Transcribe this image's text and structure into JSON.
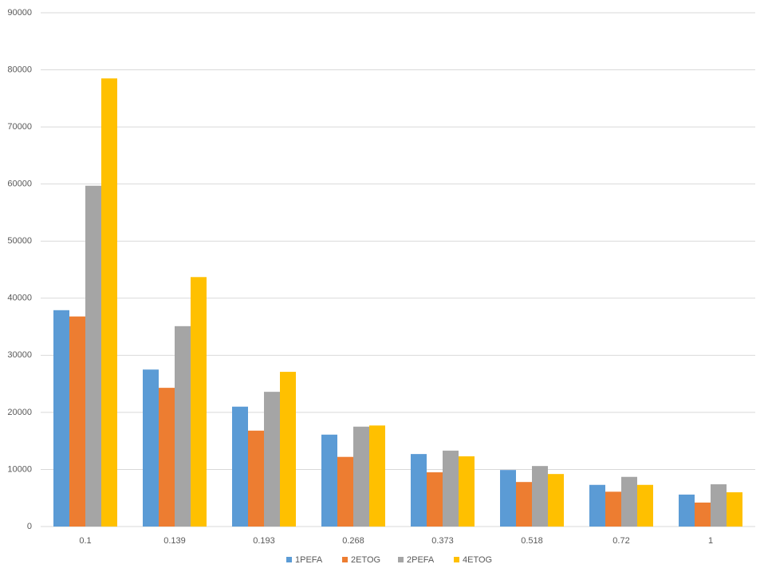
{
  "chart_data": {
    "type": "bar",
    "categories": [
      "0.1",
      "0.139",
      "0.193",
      "0.268",
      "0.373",
      "0.518",
      "0.72",
      "1"
    ],
    "series": [
      {
        "name": "1PEFA",
        "color": "#5b9bd5",
        "values": [
          37900,
          27500,
          21000,
          16100,
          12700,
          9900,
          7300,
          5600
        ]
      },
      {
        "name": "2ETOG",
        "color": "#ed7d31",
        "values": [
          36800,
          24300,
          16800,
          12200,
          9500,
          7800,
          6100,
          4200
        ]
      },
      {
        "name": "2PEFA",
        "color": "#a5a5a5",
        "values": [
          59700,
          35100,
          23600,
          17500,
          13300,
          10600,
          8700,
          7400
        ]
      },
      {
        "name": "4ETOG",
        "color": "#ffc000",
        "values": [
          78500,
          43700,
          27100,
          17700,
          12300,
          9200,
          7300,
          6000
        ]
      }
    ],
    "ylim": [
      0,
      90000
    ],
    "yticks": [
      0,
      10000,
      20000,
      30000,
      40000,
      50000,
      60000,
      70000,
      80000,
      90000
    ],
    "grid": true,
    "legend": "bottom"
  }
}
